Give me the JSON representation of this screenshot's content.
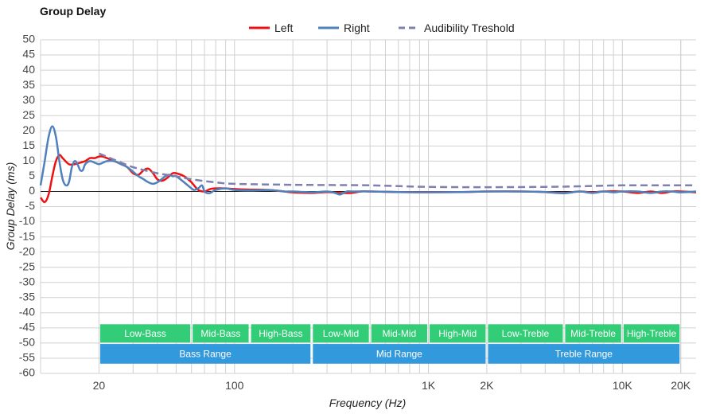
{
  "chart_data": {
    "type": "line",
    "title": "Group Delay",
    "xlabel": "Frequency (Hz)",
    "ylabel": "Group Delay (ms)",
    "x_scale": "log",
    "xlim": [
      10,
      24000
    ],
    "ylim": [
      -60,
      50
    ],
    "grid": true,
    "legend_position": "top-center",
    "x_ticks": [
      {
        "value": 20,
        "label": "20"
      },
      {
        "value": 100,
        "label": "100"
      },
      {
        "value": 1000,
        "label": "1K"
      },
      {
        "value": 2000,
        "label": "2K"
      },
      {
        "value": 10000,
        "label": "10K"
      },
      {
        "value": 20000,
        "label": "20K"
      }
    ],
    "y_ticks": [
      50,
      45,
      40,
      35,
      30,
      25,
      20,
      15,
      10,
      5,
      0,
      -5,
      -10,
      -15,
      -20,
      -25,
      -30,
      -35,
      -40,
      -45,
      -50,
      -55,
      -60
    ],
    "series": [
      {
        "name": "Left",
        "color": "#ee1111",
        "dash": false,
        "points": [
          [
            10,
            -2
          ],
          [
            10.5,
            -3.5
          ],
          [
            11,
            -1
          ],
          [
            11.5,
            5
          ],
          [
            12,
            10
          ],
          [
            12.5,
            12
          ],
          [
            13,
            11
          ],
          [
            14,
            9
          ],
          [
            15,
            9
          ],
          [
            16,
            9.5
          ],
          [
            17,
            10
          ],
          [
            18,
            11
          ],
          [
            19,
            11
          ],
          [
            20,
            11.5
          ],
          [
            21,
            11.5
          ],
          [
            22,
            11
          ],
          [
            24,
            10
          ],
          [
            26,
            9
          ],
          [
            28,
            8
          ],
          [
            30,
            6
          ],
          [
            32,
            5.5
          ],
          [
            34,
            7
          ],
          [
            36,
            7.5
          ],
          [
            38,
            6
          ],
          [
            40,
            4
          ],
          [
            42,
            3.5
          ],
          [
            44,
            4
          ],
          [
            46,
            5
          ],
          [
            48,
            6
          ],
          [
            50,
            6
          ],
          [
            55,
            5
          ],
          [
            60,
            3
          ],
          [
            65,
            0.5
          ],
          [
            70,
            0
          ],
          [
            75,
            0.8
          ],
          [
            80,
            1
          ],
          [
            90,
            1
          ],
          [
            100,
            0.8
          ],
          [
            120,
            0.6
          ],
          [
            150,
            0.5
          ],
          [
            180,
            0
          ],
          [
            200,
            -0.3
          ],
          [
            250,
            -0.5
          ],
          [
            300,
            -0.2
          ],
          [
            350,
            -0.5
          ],
          [
            400,
            -0.5
          ],
          [
            450,
            0
          ],
          [
            500,
            0
          ],
          [
            700,
            -0.2
          ],
          [
            1000,
            -0.2
          ],
          [
            1500,
            -0.2
          ],
          [
            2000,
            0
          ],
          [
            3000,
            0
          ],
          [
            4000,
            -0.2
          ],
          [
            5000,
            -0.5
          ],
          [
            6000,
            0
          ],
          [
            7000,
            -0.3
          ],
          [
            8000,
            0
          ],
          [
            10000,
            0
          ],
          [
            12000,
            -0.5
          ],
          [
            14000,
            0
          ],
          [
            16000,
            -0.5
          ],
          [
            18000,
            0
          ],
          [
            20000,
            0
          ],
          [
            24000,
            -0.3
          ]
        ]
      },
      {
        "name": "Right",
        "color": "#4f81bd",
        "dash": false,
        "points": [
          [
            10,
            2
          ],
          [
            10.5,
            10
          ],
          [
            11,
            18
          ],
          [
            11.5,
            21.5
          ],
          [
            12,
            18
          ],
          [
            12.5,
            10
          ],
          [
            13,
            4
          ],
          [
            13.5,
            2
          ],
          [
            14,
            3
          ],
          [
            14.5,
            8
          ],
          [
            15,
            10
          ],
          [
            15.5,
            9
          ],
          [
            16,
            7
          ],
          [
            16.5,
            7
          ],
          [
            17,
            9
          ],
          [
            18,
            10
          ],
          [
            19,
            9.5
          ],
          [
            20,
            9
          ],
          [
            21,
            9.5
          ],
          [
            22,
            10
          ],
          [
            24,
            10
          ],
          [
            26,
            9
          ],
          [
            28,
            8
          ],
          [
            30,
            6.5
          ],
          [
            32,
            5
          ],
          [
            34,
            4
          ],
          [
            36,
            3
          ],
          [
            38,
            2.5
          ],
          [
            40,
            3
          ],
          [
            42,
            4
          ],
          [
            44,
            5
          ],
          [
            46,
            5.5
          ],
          [
            48,
            5
          ],
          [
            50,
            5
          ],
          [
            55,
            3
          ],
          [
            60,
            1
          ],
          [
            62,
            0.5
          ],
          [
            65,
            1
          ],
          [
            68,
            2
          ],
          [
            70,
            0
          ],
          [
            72,
            -0.5
          ],
          [
            75,
            -0.5
          ],
          [
            80,
            0.5
          ],
          [
            90,
            1
          ],
          [
            100,
            0.5
          ],
          [
            120,
            0.3
          ],
          [
            150,
            0.5
          ],
          [
            180,
            0
          ],
          [
            200,
            0
          ],
          [
            250,
            -0.3
          ],
          [
            300,
            0
          ],
          [
            330,
            -0.5
          ],
          [
            350,
            -1
          ],
          [
            380,
            0
          ],
          [
            400,
            0
          ],
          [
            500,
            0
          ],
          [
            700,
            -0.2
          ],
          [
            1000,
            -0.3
          ],
          [
            1500,
            -0.2
          ],
          [
            2000,
            0
          ],
          [
            3000,
            0
          ],
          [
            4000,
            -0.2
          ],
          [
            5000,
            -0.6
          ],
          [
            6000,
            0
          ],
          [
            7000,
            -0.5
          ],
          [
            8000,
            0
          ],
          [
            9000,
            -0.3
          ],
          [
            10000,
            0
          ],
          [
            12000,
            0
          ],
          [
            14000,
            -0.5
          ],
          [
            16000,
            0
          ],
          [
            18000,
            0
          ],
          [
            20000,
            -0.3
          ],
          [
            24000,
            0
          ]
        ]
      },
      {
        "name": "Audibility Treshold",
        "color": "#8080b0",
        "dash": true,
        "points": [
          [
            20,
            12.5
          ],
          [
            25,
            10
          ],
          [
            30,
            8
          ],
          [
            40,
            6
          ],
          [
            50,
            5
          ],
          [
            60,
            4
          ],
          [
            80,
            3
          ],
          [
            100,
            2.5
          ],
          [
            200,
            2.2
          ],
          [
            500,
            2
          ],
          [
            1000,
            1.5
          ],
          [
            2000,
            1.4
          ],
          [
            4000,
            1.5
          ],
          [
            6000,
            1.7
          ],
          [
            10000,
            2
          ],
          [
            24000,
            2
          ]
        ]
      }
    ],
    "frequency_bands": [
      {
        "label": "Low-Bass",
        "from": 20,
        "to": 60,
        "row": 1
      },
      {
        "label": "Mid-Bass",
        "from": 60,
        "to": 120,
        "row": 1
      },
      {
        "label": "High-Bass",
        "from": 120,
        "to": 250,
        "row": 1
      },
      {
        "label": "Low-Mid",
        "from": 250,
        "to": 500,
        "row": 1
      },
      {
        "label": "Mid-Mid",
        "from": 500,
        "to": 1000,
        "row": 1
      },
      {
        "label": "High-Mid",
        "from": 1000,
        "to": 2000,
        "row": 1
      },
      {
        "label": "Low-Treble",
        "from": 2000,
        "to": 5000,
        "row": 1
      },
      {
        "label": "Mid-Treble",
        "from": 5000,
        "to": 10000,
        "row": 1
      },
      {
        "label": "High-Treble",
        "from": 10000,
        "to": 20000,
        "row": 1
      },
      {
        "label": "Bass Range",
        "from": 20,
        "to": 250,
        "row": 2
      },
      {
        "label": "Mid Range",
        "from": 250,
        "to": 2000,
        "row": 2
      },
      {
        "label": "Treble Range",
        "from": 2000,
        "to": 20000,
        "row": 2
      }
    ],
    "colors": {
      "band_row1": "#33cc77",
      "band_row2": "#3399dd",
      "grid": "#d0d0d0",
      "zero_line": "#222222"
    }
  }
}
